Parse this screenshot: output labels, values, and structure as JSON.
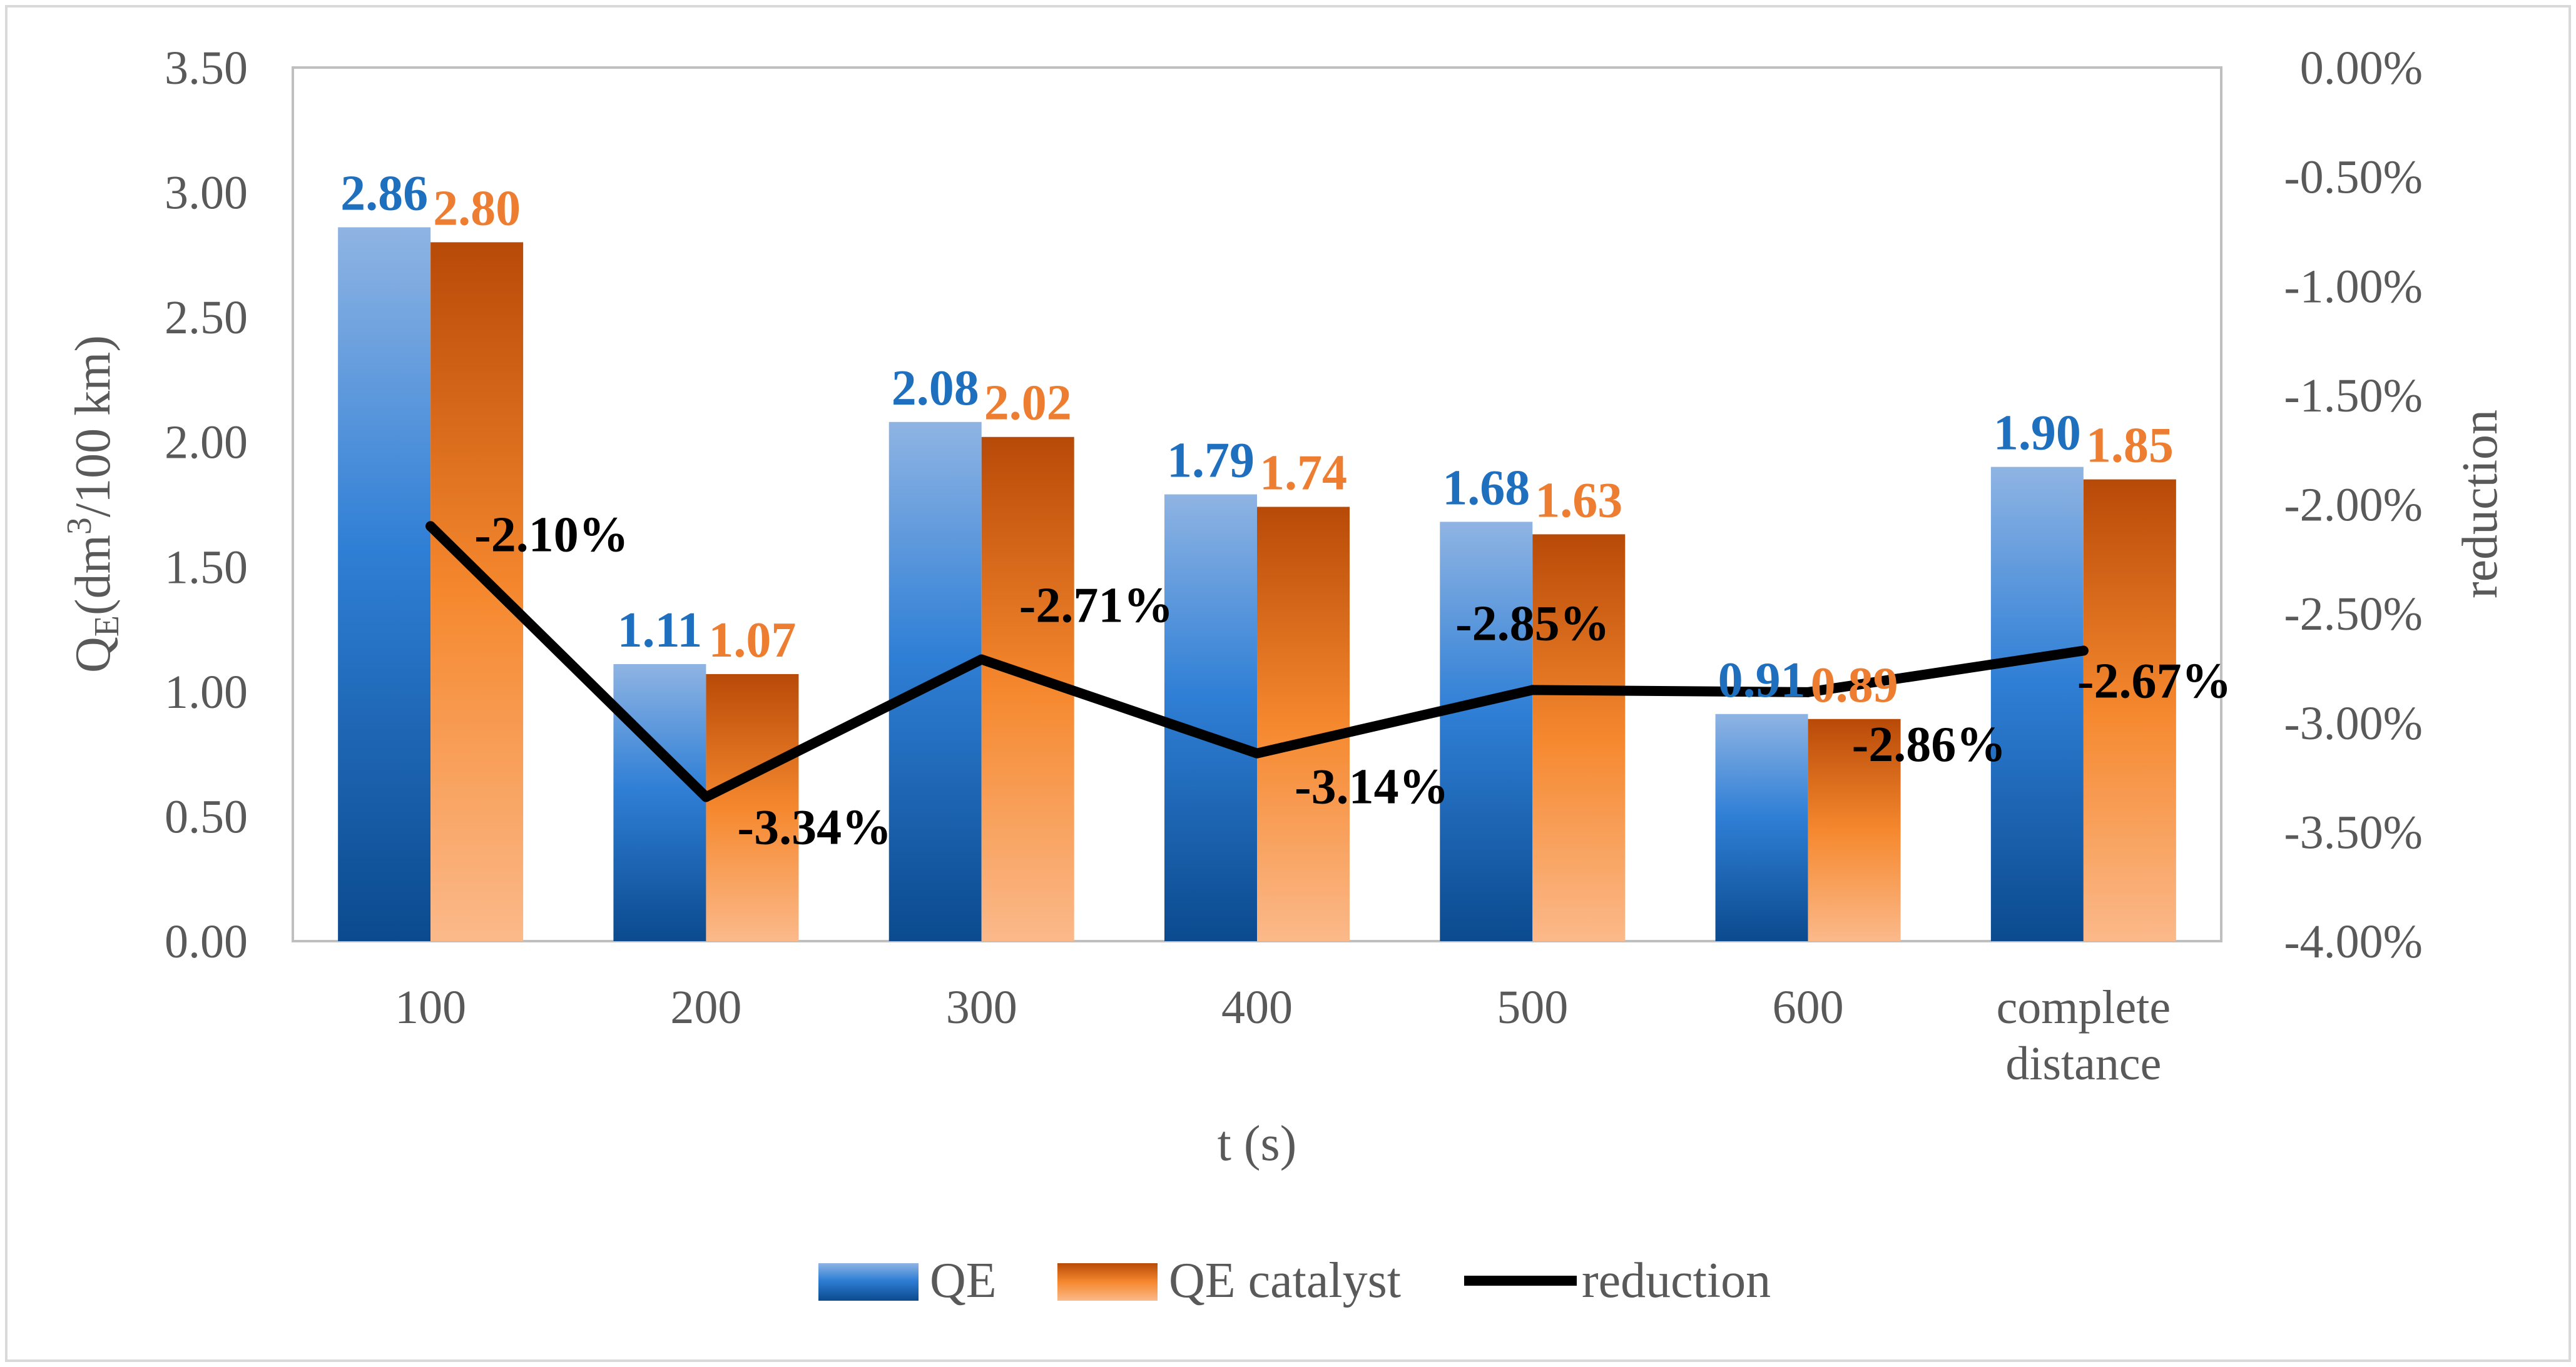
{
  "chart_data": {
    "type": "bar",
    "categories": [
      "100",
      "200",
      "300",
      "400",
      "500",
      "600",
      "complete\ndistance"
    ],
    "series": [
      {
        "name": "QE",
        "axis": "left",
        "kind": "bar",
        "color": "#1f6fbf",
        "values": [
          2.86,
          1.11,
          2.08,
          1.79,
          1.68,
          0.91,
          1.9
        ],
        "labels": [
          "2.86",
          "1.11",
          "2.08",
          "1.79",
          "1.68",
          "0.91",
          "1.90"
        ]
      },
      {
        "name": "QE catalyst",
        "axis": "left",
        "kind": "bar",
        "color": "#ed7d31",
        "values": [
          2.8,
          1.07,
          2.02,
          1.74,
          1.63,
          0.89,
          1.85
        ],
        "labels": [
          "2.80",
          "1.07",
          "2.02",
          "1.74",
          "1.63",
          "0.89",
          "1.85"
        ]
      },
      {
        "name": "reduction",
        "axis": "right",
        "kind": "line",
        "color": "#000000",
        "values": [
          -2.1,
          -3.34,
          -2.71,
          -3.14,
          -2.85,
          -2.86,
          -2.67
        ],
        "labels": [
          "-2.10%",
          "-3.34%",
          "-2.71%",
          "-3.14%",
          "-2.85%",
          "-2.86%",
          "-2.67%"
        ]
      }
    ],
    "xlabel": "t (s)",
    "ylabel_prefix": "Q",
    "ylabel_subscript": "E",
    "ylabel_main": "(dm",
    "ylabel_superscript": "3",
    "ylabel_suffix": "/100 km)",
    "y2label": "reduction",
    "ylim": [
      0,
      3.5
    ],
    "y2lim": [
      -4.0,
      0.0
    ],
    "yticks": [
      "0.00",
      "0.50",
      "1.00",
      "1.50",
      "2.00",
      "2.50",
      "3.00",
      "3.50"
    ],
    "y2ticks": [
      "-4.00%",
      "-3.50%",
      "-3.00%",
      "-2.50%",
      "-2.00%",
      "-1.50%",
      "-1.00%",
      "-0.50%",
      "0.00%"
    ],
    "legend": {
      "position": "bottom",
      "items": [
        "QE",
        "QE catalyst",
        "reduction"
      ]
    }
  }
}
